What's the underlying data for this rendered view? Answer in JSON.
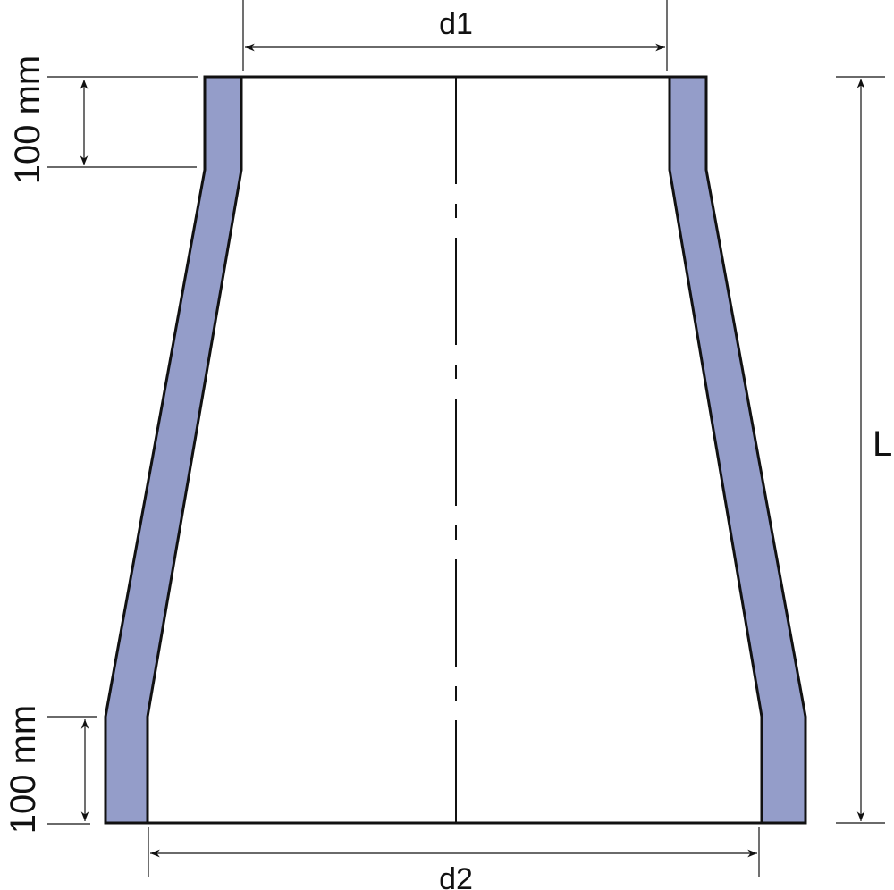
{
  "labels": {
    "top_diameter": "d1",
    "bottom_diameter": "d2",
    "length": "L",
    "top_socket_length": "100 mm",
    "bottom_socket_length": "100 mm"
  },
  "colors": {
    "wall_fill": "#949dc9",
    "outline": "#111111"
  }
}
